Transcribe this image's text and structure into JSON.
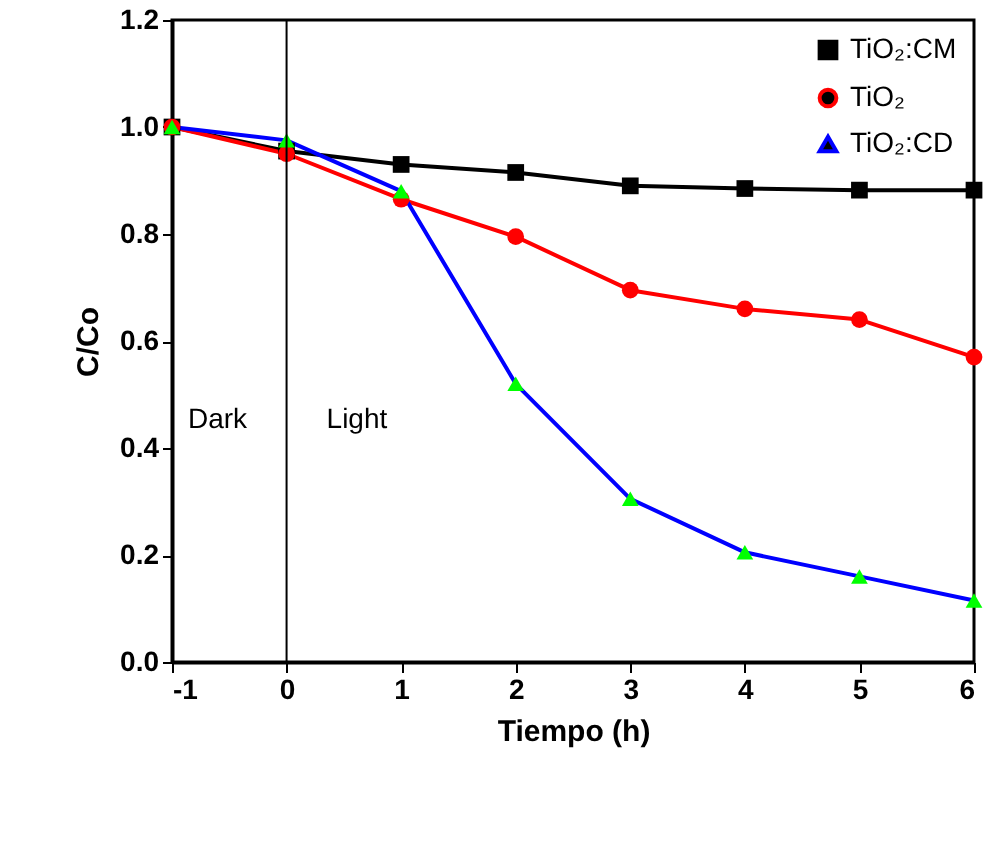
{
  "chart_data": {
    "type": "line",
    "xlabel": "Tiempo (h)",
    "ylabel": "C/Co",
    "x": [
      -1,
      0,
      1,
      2,
      3,
      4,
      5,
      6
    ],
    "series": [
      {
        "name": "TiO₂:CM",
        "color": "#000000",
        "marker": "square",
        "values": [
          1.0,
          0.955,
          0.93,
          0.915,
          0.89,
          0.885,
          0.882,
          0.882
        ]
      },
      {
        "name": "TiO₂",
        "color": "#ff0000",
        "marker": "circle",
        "values": [
          1.0,
          0.95,
          0.865,
          0.795,
          0.695,
          0.66,
          0.64,
          0.57
        ]
      },
      {
        "name": "TiO₂:CD",
        "color": "#0000ff",
        "marker": "triangle",
        "colors": [
          "#00ff00",
          "#00ff00",
          "#00ff00",
          "#00ff00",
          "#00ff00",
          "#00ff00",
          "#00ff00",
          "#00ff00"
        ],
        "values": [
          1.0,
          0.975,
          0.88,
          0.52,
          0.305,
          0.205,
          0.16,
          0.115
        ]
      }
    ],
    "xlim": [
      -1,
      6
    ],
    "xticks": [
      -1,
      0,
      1,
      2,
      3,
      4,
      5,
      6
    ],
    "ylim": [
      0,
      1.2
    ],
    "yticks": [
      {
        "value": 0,
        "label": "0.0"
      },
      {
        "value": 0.2,
        "label": "0.2"
      },
      {
        "value": 0.4,
        "label": "0.4"
      },
      {
        "value": 0.6,
        "label": "0.6"
      },
      {
        "value": 0.8,
        "label": "0.8"
      },
      {
        "value": 1,
        "label": "1.0"
      },
      {
        "value": 1.2,
        "label": "1.2"
      }
    ],
    "ref_lines": [
      {
        "axis": "x",
        "value": 0,
        "color": "#000000"
      }
    ],
    "annotations": [
      "Dark",
      "Light"
    ],
    "grid": false,
    "legend": "top right",
    "line_style": "solid"
  }
}
